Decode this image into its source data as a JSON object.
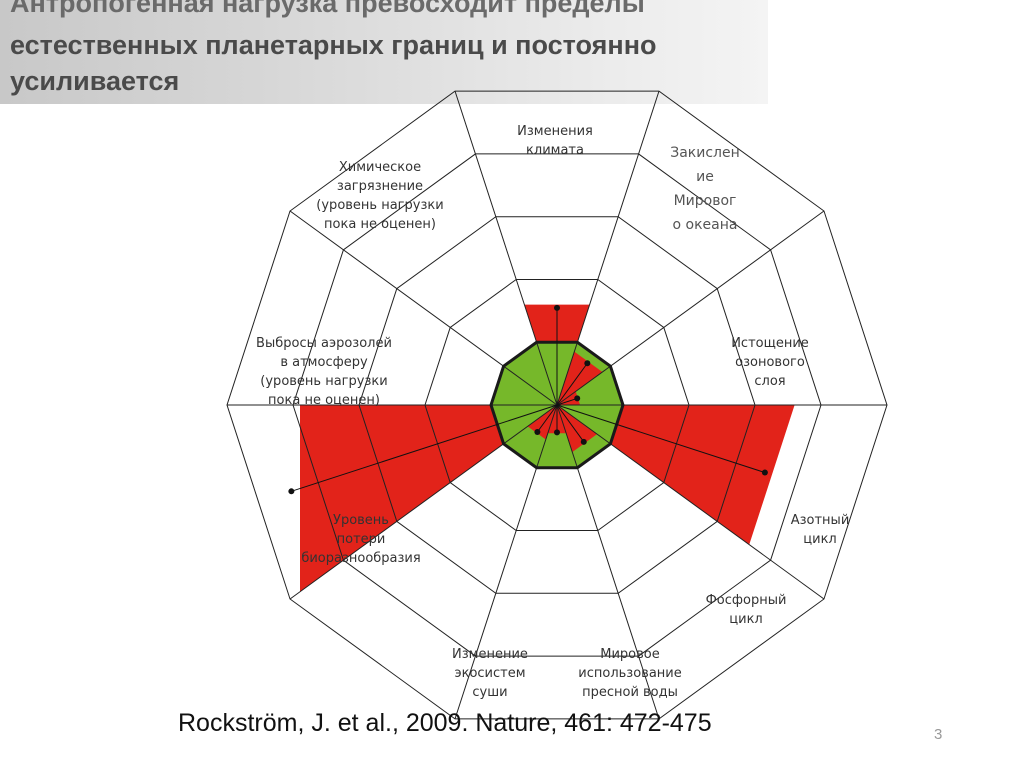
{
  "title": {
    "line1": "Антропогенная нагрузка превосходит пределы",
    "line2": "естественных планетарных границ и постоянно",
    "line3": "усиливается"
  },
  "boundaries": [
    {
      "label": "Изменения\nклимата",
      "level": 1.6,
      "id": "climate"
    },
    {
      "label": "Закислен\nие\nМировог\nо океана",
      "level": 0.85,
      "id": "ocean"
    },
    {
      "label": "Истощение\nозонового\nслоя",
      "level": 0.35,
      "id": "ozone"
    },
    {
      "label": "Азотный\nцикл",
      "level": 3.6,
      "id": "nitrogen"
    },
    {
      "label": "Фосфорный\nцикл",
      "level": 0.75,
      "id": "phosphorus"
    },
    {
      "label": "Мировое\nиспользование\nпресной воды",
      "level": 0.45,
      "id": "water"
    },
    {
      "label": "Изменение\nэкосистем\nсуши",
      "level": 0.55,
      "id": "land"
    },
    {
      "label": "Уровень\nпотери\nбиоразнообразия",
      "level": 5.5,
      "id": "biodiversity"
    },
    {
      "label": "Выбросы аэрозолей\nв атмосферу\n(уровень нагрузки\nпока не оценен)",
      "level": null,
      "id": "aerosols"
    },
    {
      "label": "Химическое\nзагрязнение\n(уровень нагрузки\nпока не оценен)",
      "level": null,
      "id": "chemical"
    }
  ],
  "colors": {
    "safe_zone": "#76b82a",
    "exceeded": "#e2231a",
    "grid": "#222222",
    "boundary_ring": "#1a1a1a"
  },
  "citation": "Rockström, J. et al., 2009. Nature, 461: 472-475",
  "page_number": "3"
}
